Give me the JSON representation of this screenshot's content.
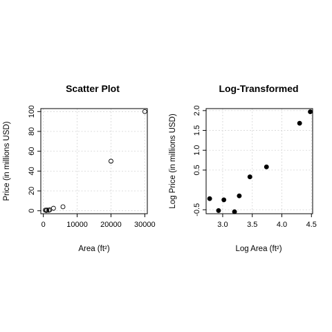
{
  "chart_data": [
    {
      "type": "scatter",
      "title": "Scatter Plot",
      "xlabel": "Area (ft²)",
      "ylabel": "Price (in millions USD)",
      "xlim": [
        -750,
        30750
      ],
      "ylim": [
        -3,
        103
      ],
      "xticks": [
        0,
        10000,
        20000,
        30000
      ],
      "xtick_labels": [
        "0",
        "10000",
        "20000",
        "30000"
      ],
      "yticks": [
        0,
        20,
        40,
        60,
        80,
        100
      ],
      "ytick_labels": [
        "0",
        "20",
        "40",
        "60",
        "80",
        "100"
      ],
      "grid": true,
      "marker": "open-circle",
      "points": [
        {
          "x": 600,
          "y": 0.6
        },
        {
          "x": 850,
          "y": 0.3
        },
        {
          "x": 1050,
          "y": 0.7
        },
        {
          "x": 1600,
          "y": 0.5
        },
        {
          "x": 1900,
          "y": 1.0
        },
        {
          "x": 3000,
          "y": 2.5
        },
        {
          "x": 5800,
          "y": 4.0
        },
        {
          "x": 20000,
          "y": 50
        },
        {
          "x": 30000,
          "y": 100
        }
      ]
    },
    {
      "type": "scatter",
      "title": "Log-Transformed",
      "xlabel": "Log Area (ft²)",
      "ylabel": "Log Price (in millions USD)",
      "xlim": [
        2.72,
        4.52
      ],
      "ylim": [
        -0.6,
        2.05
      ],
      "xticks": [
        3.0,
        3.5,
        4.0,
        4.5
      ],
      "xtick_labels": [
        "3.0",
        "3.5",
        "4.0",
        "4.5"
      ],
      "yticks": [
        -0.5,
        0.5,
        1.0,
        1.5,
        2.0
      ],
      "ytick_labels": [
        "-0.5",
        "0.5",
        "1.0",
        "1.5",
        "2.0"
      ],
      "grid": true,
      "marker": "filled-circle",
      "points": [
        {
          "x": 2.78,
          "y": -0.22
        },
        {
          "x": 2.93,
          "y": -0.52
        },
        {
          "x": 3.02,
          "y": -0.25
        },
        {
          "x": 3.2,
          "y": -0.55
        },
        {
          "x": 3.28,
          "y": -0.15
        },
        {
          "x": 3.46,
          "y": 0.33
        },
        {
          "x": 3.74,
          "y": 0.58
        },
        {
          "x": 4.3,
          "y": 1.68
        },
        {
          "x": 4.48,
          "y": 1.97
        }
      ]
    }
  ]
}
